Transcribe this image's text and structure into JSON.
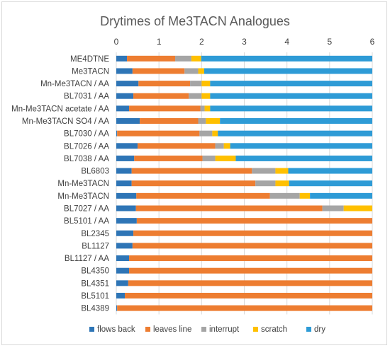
{
  "chart_data": {
    "type": "bar",
    "orientation": "horizontal",
    "stacked": true,
    "title": "Drytimes of Me3TACN Analogues",
    "xlim": [
      0,
      6
    ],
    "xticks": [
      "0",
      "1",
      "2",
      "3",
      "4",
      "5",
      "6"
    ],
    "grid": true,
    "legend_position": "bottom",
    "categories": [
      "ME4DTNE",
      "Me3TACN",
      "Mn-Me3TACN / AA",
      "BL7031 / AA",
      "Mn-Me3TACN acetate / AA",
      "Mn-Me3TACN SO4 / AA",
      "BL7030 / AA",
      "BL7026 / AA",
      "BL7038 / AA",
      "BL6803",
      "Mn-Me3TACN",
      "Mn-Me3TACN",
      "BL7027 / AA",
      "BL5101 / AA",
      "BL2345",
      "BL1127",
      "BL1127 / AA",
      "BL4350",
      "BL4351",
      "BL5101",
      "BL4389"
    ],
    "series": [
      {
        "name": "flows back",
        "color": "#2e75b6",
        "values": [
          0.25,
          0.38,
          0.52,
          0.4,
          0.3,
          0.55,
          0.02,
          0.5,
          0.42,
          0.36,
          0.36,
          0.47,
          0.46,
          0.48,
          0.4,
          0.38,
          0.3,
          0.3,
          0.28,
          0.2,
          0.02
        ]
      },
      {
        "name": "leaves line",
        "color": "#ed7d31",
        "values": [
          1.13,
          1.22,
          1.21,
          1.3,
          1.67,
          1.37,
          1.93,
          1.82,
          1.6,
          2.82,
          2.9,
          3.13,
          4.37,
          5.52,
          5.6,
          5.62,
          5.7,
          5.7,
          5.72,
          5.8,
          5.98
        ]
      },
      {
        "name": "interrupt",
        "color": "#a5a5a5",
        "values": [
          0.38,
          0.32,
          0.27,
          0.3,
          0.1,
          0.18,
          0.3,
          0.2,
          0.3,
          0.55,
          0.47,
          0.7,
          0.5,
          0,
          0,
          0,
          0,
          0,
          0,
          0,
          0
        ]
      },
      {
        "name": "scratch",
        "color": "#ffc000",
        "values": [
          0.23,
          0.14,
          0.2,
          0.2,
          0.13,
          0.33,
          0.13,
          0.15,
          0.48,
          0.3,
          0.32,
          0.24,
          0.67,
          0,
          0,
          0,
          0,
          0,
          0,
          0,
          0
        ]
      },
      {
        "name": "dry",
        "color": "#2e9bd6",
        "values": [
          4.01,
          3.94,
          3.8,
          3.8,
          3.8,
          3.57,
          3.62,
          3.33,
          3.2,
          1.97,
          1.95,
          1.46,
          0,
          0,
          0,
          0,
          0,
          0,
          0,
          0,
          0
        ]
      }
    ]
  }
}
